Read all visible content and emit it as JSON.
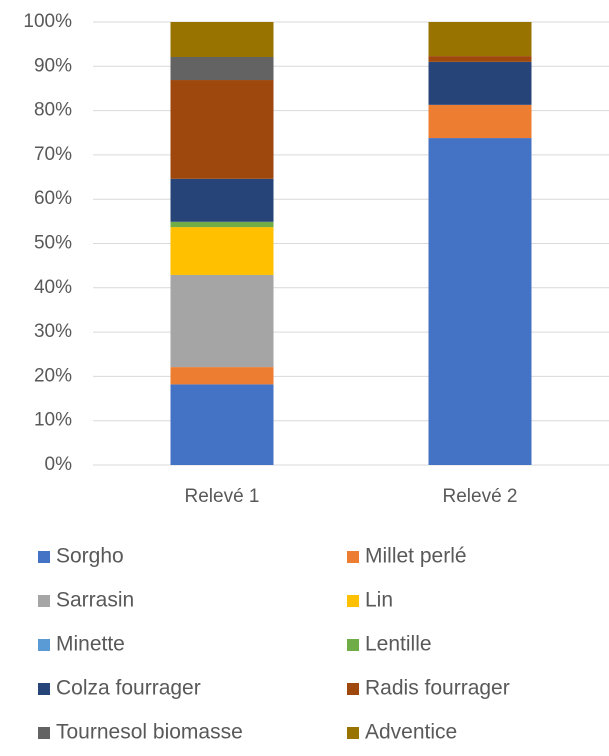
{
  "chart_data": {
    "type": "stacked_bar",
    "categories": [
      "Relevé 1",
      "Relevé 2"
    ],
    "series": [
      {
        "name": "Sorgho",
        "color": "#4472c4",
        "values": [
          18.2,
          73.8
        ]
      },
      {
        "name": "Millet perlé",
        "color": "#ed7d31",
        "values": [
          3.9,
          7.5
        ]
      },
      {
        "name": "Sarrasin",
        "color": "#a5a5a5",
        "values": [
          20.8,
          0
        ]
      },
      {
        "name": "Lin",
        "color": "#ffc000",
        "values": [
          10.8,
          0
        ]
      },
      {
        "name": "Minette",
        "color": "#5b9bd5",
        "values": [
          0,
          0
        ]
      },
      {
        "name": "Lentille",
        "color": "#70ad47",
        "values": [
          1.2,
          0
        ]
      },
      {
        "name": "Colza fourrager",
        "color": "#264478",
        "values": [
          9.7,
          9.7
        ]
      },
      {
        "name": "Radis fourrager",
        "color": "#9e480e",
        "values": [
          22.3,
          1.3
        ]
      },
      {
        "name": "Tournesol biomasse",
        "color": "#636363",
        "values": [
          5.2,
          0
        ]
      },
      {
        "name": "Adventice",
        "color": "#997300",
        "values": [
          7.9,
          7.7
        ]
      }
    ],
    "ylim": [
      0,
      100
    ],
    "yticks": [
      {
        "value": 0,
        "label": "0%"
      },
      {
        "value": 10,
        "label": "10%"
      },
      {
        "value": 20,
        "label": "20%"
      },
      {
        "value": 30,
        "label": "30%"
      },
      {
        "value": 40,
        "label": "40%"
      },
      {
        "value": 50,
        "label": "50%"
      },
      {
        "value": 60,
        "label": "60%"
      },
      {
        "value": 70,
        "label": "70%"
      },
      {
        "value": 80,
        "label": "80%"
      },
      {
        "value": 90,
        "label": "90%"
      },
      {
        "value": 100,
        "label": "100%"
      }
    ],
    "grid": true,
    "legend": "bottom"
  }
}
